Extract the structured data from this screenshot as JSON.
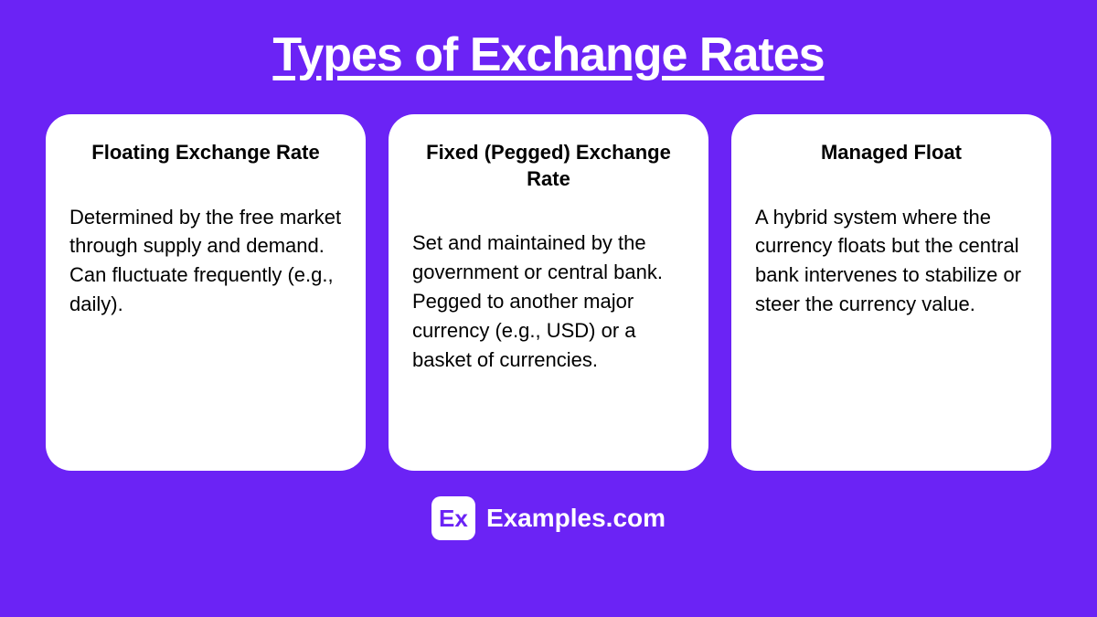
{
  "background_color": "#6b23f5",
  "title": {
    "text": "Types of Exchange Rates",
    "fontsize": 52,
    "color": "#ffffff"
  },
  "cards": [
    {
      "title": "Floating Exchange Rate",
      "body": "Determined by the free market through supply and demand. Can fluctuate frequently (e.g., daily)."
    },
    {
      "title": "Fixed (Pegged) Exchange Rate",
      "body": "Set and maintained by the government or central bank. Pegged to another major currency (e.g., USD) or a basket of currencies."
    },
    {
      "title": "Managed Float",
      "body": "A hybrid system where the currency floats but the central bank intervenes to stabilize or steer the currency value."
    }
  ],
  "card_style": {
    "background": "#ffffff",
    "border_radius": 28,
    "title_fontsize": 22,
    "body_fontsize": 22
  },
  "footer": {
    "logo_text": "Ex",
    "logo_color": "#6b23f5",
    "site_text": "Examples.com",
    "fontsize": 28
  }
}
